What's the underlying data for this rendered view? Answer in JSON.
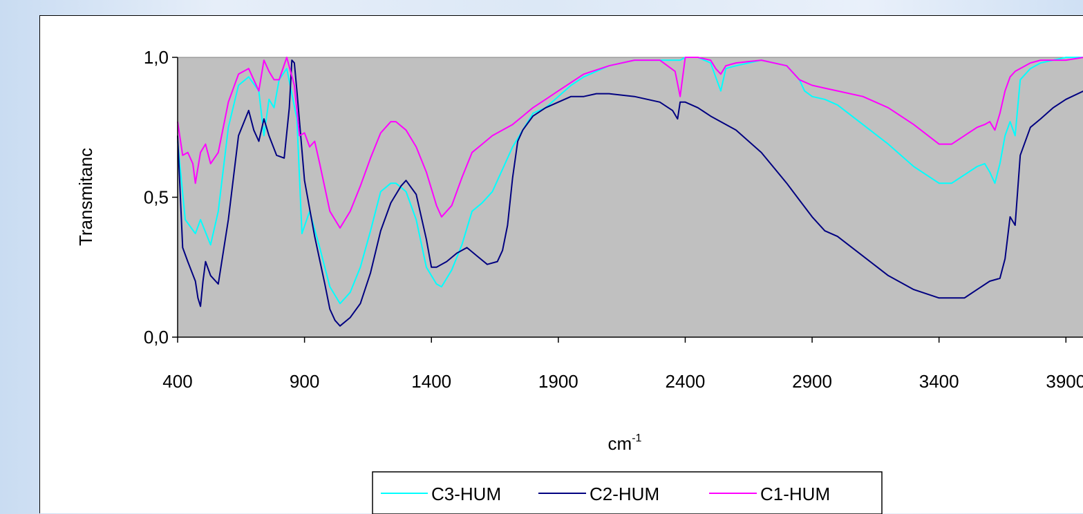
{
  "chart_data": {
    "type": "line",
    "xlabel": "cm",
    "xlabel_superscript": "-1",
    "ylabel": "Transmitanc",
    "xlim": [
      400,
      3970
    ],
    "ylim": [
      0,
      1
    ],
    "x_ticks": [
      400,
      900,
      1400,
      1900,
      2400,
      2900,
      3400,
      3900
    ],
    "x_tick_labels": [
      "400",
      "900",
      "1400",
      "1900",
      "2400",
      "2900",
      "3400",
      "3900"
    ],
    "y_ticks": [
      0,
      0.5,
      1
    ],
    "y_tick_labels": [
      "0,0",
      "0,5",
      "1,0"
    ],
    "plot_background": "#c0c0c0",
    "grid": false,
    "legend_position": "bottom-center",
    "series": [
      {
        "name": "C3-HUM",
        "color": "#00ffff",
        "x": [
          400,
          430,
          470,
          490,
          530,
          560,
          600,
          640,
          680,
          720,
          740,
          760,
          780,
          800,
          830,
          870,
          890,
          920,
          960,
          1000,
          1040,
          1080,
          1120,
          1160,
          1200,
          1240,
          1260,
          1300,
          1340,
          1380,
          1420,
          1440,
          1480,
          1520,
          1560,
          1600,
          1640,
          1680,
          1720,
          1760,
          1800,
          1850,
          1900,
          1950,
          2000,
          2100,
          2200,
          2300,
          2360,
          2380,
          2400,
          2450,
          2500,
          2520,
          2540,
          2560,
          2600,
          2700,
          2800,
          2850,
          2870,
          2900,
          2950,
          3000,
          3100,
          3200,
          3300,
          3400,
          3450,
          3500,
          3550,
          3580,
          3600,
          3620,
          3640,
          3660,
          3680,
          3700,
          3720,
          3760,
          3800,
          3850,
          3900,
          3970
        ],
        "y": [
          0.7,
          0.42,
          0.37,
          0.42,
          0.33,
          0.45,
          0.75,
          0.9,
          0.93,
          0.88,
          0.72,
          0.85,
          0.82,
          0.92,
          0.96,
          0.78,
          0.37,
          0.45,
          0.32,
          0.18,
          0.12,
          0.16,
          0.25,
          0.38,
          0.52,
          0.55,
          0.55,
          0.52,
          0.42,
          0.25,
          0.19,
          0.18,
          0.24,
          0.33,
          0.45,
          0.48,
          0.52,
          0.6,
          0.68,
          0.74,
          0.8,
          0.82,
          0.86,
          0.9,
          0.93,
          0.97,
          0.99,
          0.99,
          0.99,
          0.99,
          1.0,
          1.0,
          0.98,
          0.93,
          0.88,
          0.96,
          0.97,
          0.99,
          0.97,
          0.92,
          0.88,
          0.86,
          0.85,
          0.83,
          0.76,
          0.69,
          0.61,
          0.55,
          0.55,
          0.58,
          0.61,
          0.62,
          0.59,
          0.55,
          0.62,
          0.72,
          0.77,
          0.72,
          0.92,
          0.96,
          0.98,
          0.99,
          1.0,
          1.0
        ]
      },
      {
        "name": "C2-HUM",
        "color": "#000080",
        "x": [
          400,
          420,
          440,
          470,
          480,
          490,
          500,
          510,
          530,
          560,
          600,
          640,
          680,
          700,
          720,
          740,
          760,
          790,
          820,
          840,
          850,
          860,
          870,
          900,
          940,
          980,
          1000,
          1020,
          1040,
          1080,
          1120,
          1160,
          1200,
          1240,
          1280,
          1300,
          1340,
          1380,
          1400,
          1420,
          1460,
          1500,
          1540,
          1580,
          1620,
          1660,
          1680,
          1700,
          1720,
          1740,
          1760,
          1800,
          1850,
          1900,
          1950,
          2000,
          2050,
          2100,
          2200,
          2300,
          2350,
          2370,
          2380,
          2400,
          2450,
          2500,
          2600,
          2700,
          2800,
          2850,
          2900,
          2950,
          3000,
          3100,
          3200,
          3300,
          3400,
          3500,
          3550,
          3600,
          3640,
          3660,
          3680,
          3700,
          3720,
          3760,
          3800,
          3850,
          3900,
          3970
        ],
        "y": [
          0.72,
          0.32,
          0.27,
          0.2,
          0.14,
          0.11,
          0.2,
          0.27,
          0.22,
          0.19,
          0.42,
          0.72,
          0.81,
          0.74,
          0.7,
          0.78,
          0.72,
          0.65,
          0.64,
          0.82,
          0.99,
          0.98,
          0.88,
          0.56,
          0.36,
          0.19,
          0.1,
          0.06,
          0.04,
          0.07,
          0.12,
          0.23,
          0.38,
          0.48,
          0.54,
          0.56,
          0.51,
          0.35,
          0.25,
          0.25,
          0.27,
          0.3,
          0.32,
          0.29,
          0.26,
          0.27,
          0.31,
          0.4,
          0.57,
          0.7,
          0.74,
          0.79,
          0.82,
          0.84,
          0.86,
          0.86,
          0.87,
          0.87,
          0.86,
          0.84,
          0.81,
          0.78,
          0.84,
          0.84,
          0.82,
          0.79,
          0.74,
          0.66,
          0.55,
          0.49,
          0.43,
          0.38,
          0.36,
          0.29,
          0.22,
          0.17,
          0.14,
          0.14,
          0.17,
          0.2,
          0.21,
          0.28,
          0.43,
          0.4,
          0.65,
          0.75,
          0.78,
          0.82,
          0.85,
          0.88
        ]
      },
      {
        "name": "C1-HUM",
        "color": "#ff00ff",
        "x": [
          400,
          420,
          440,
          460,
          470,
          490,
          510,
          530,
          560,
          600,
          640,
          680,
          720,
          740,
          760,
          780,
          800,
          830,
          860,
          880,
          900,
          920,
          940,
          960,
          1000,
          1040,
          1080,
          1120,
          1160,
          1200,
          1240,
          1260,
          1300,
          1340,
          1380,
          1420,
          1440,
          1480,
          1520,
          1560,
          1600,
          1640,
          1680,
          1720,
          1760,
          1800,
          1850,
          1900,
          1950,
          2000,
          2100,
          2200,
          2300,
          2360,
          2380,
          2400,
          2450,
          2500,
          2520,
          2540,
          2560,
          2600,
          2700,
          2800,
          2850,
          2900,
          2950,
          3000,
          3100,
          3200,
          3300,
          3400,
          3450,
          3500,
          3550,
          3580,
          3600,
          3620,
          3640,
          3660,
          3680,
          3700,
          3760,
          3800,
          3850,
          3900,
          3970
        ],
        "y": [
          0.77,
          0.65,
          0.66,
          0.62,
          0.55,
          0.66,
          0.69,
          0.62,
          0.66,
          0.84,
          0.94,
          0.96,
          0.88,
          0.99,
          0.95,
          0.92,
          0.92,
          1.0,
          0.9,
          0.72,
          0.73,
          0.68,
          0.7,
          0.62,
          0.45,
          0.39,
          0.45,
          0.54,
          0.64,
          0.73,
          0.77,
          0.77,
          0.74,
          0.68,
          0.59,
          0.47,
          0.43,
          0.47,
          0.57,
          0.66,
          0.69,
          0.72,
          0.74,
          0.76,
          0.79,
          0.82,
          0.85,
          0.88,
          0.91,
          0.94,
          0.97,
          0.99,
          0.99,
          0.95,
          0.86,
          1.0,
          1.0,
          0.99,
          0.96,
          0.94,
          0.97,
          0.98,
          0.99,
          0.97,
          0.92,
          0.9,
          0.89,
          0.88,
          0.86,
          0.82,
          0.76,
          0.69,
          0.69,
          0.72,
          0.75,
          0.76,
          0.77,
          0.74,
          0.8,
          0.88,
          0.93,
          0.95,
          0.98,
          0.99,
          0.99,
          0.99,
          1.0
        ]
      }
    ]
  }
}
